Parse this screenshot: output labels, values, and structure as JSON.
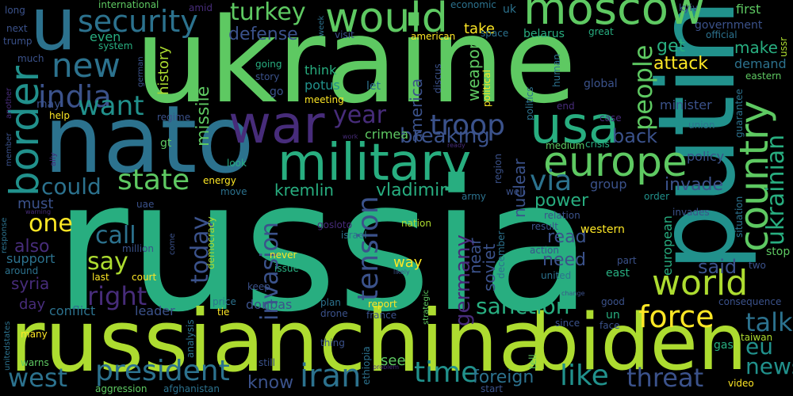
{
  "palette": {
    "background": "#000000",
    "dark-purple": "#440154",
    "indigo": "#472c7a",
    "slate-blue": "#3b528b",
    "steel-blue": "#2c728e",
    "teal": "#21918c",
    "sea-green": "#28ae80",
    "green": "#5ec962",
    "lime": "#addc30",
    "yellow": "#fde725"
  },
  "words": [
    {
      "text": "russia",
      "color": "sea-green"
    },
    {
      "text": "ukraine",
      "color": "green"
    },
    {
      "text": "russianchina",
      "color": "lime"
    },
    {
      "text": "putin",
      "color": "teal"
    },
    {
      "text": "nato",
      "color": "steel-blue"
    },
    {
      "text": "biden",
      "color": "lime"
    },
    {
      "text": "u",
      "color": "steel-blue"
    },
    {
      "text": "war",
      "color": "indigo"
    },
    {
      "text": "moscow",
      "color": "green"
    },
    {
      "text": "military",
      "color": "sea-green"
    },
    {
      "text": "would",
      "color": "green"
    },
    {
      "text": "usa",
      "color": "sea-green"
    },
    {
      "text": "europe",
      "color": "green"
    },
    {
      "text": "country",
      "color": "green"
    },
    {
      "text": "border",
      "color": "teal"
    },
    {
      "text": "world",
      "color": "lime"
    },
    {
      "text": "security",
      "color": "steel-blue"
    },
    {
      "text": "new",
      "color": "steel-blue"
    },
    {
      "text": "president",
      "color": "steel-blue"
    },
    {
      "text": "force",
      "color": "yellow"
    },
    {
      "text": "time",
      "color": "teal"
    },
    {
      "text": "ukrainian",
      "color": "sea-green"
    },
    {
      "text": "india",
      "color": "slate-blue"
    },
    {
      "text": "invasion",
      "color": "slate-blue"
    },
    {
      "text": "tension",
      "color": "slate-blue"
    },
    {
      "text": "troop",
      "color": "slate-blue"
    },
    {
      "text": "state",
      "color": "green"
    },
    {
      "text": "want",
      "color": "teal"
    },
    {
      "text": "sanction",
      "color": "sea-green"
    },
    {
      "text": "germany",
      "color": "indigo"
    },
    {
      "text": "iran",
      "color": "steel-blue"
    },
    {
      "text": "threat",
      "color": "slate-blue"
    },
    {
      "text": "like",
      "color": "teal"
    },
    {
      "text": "foreign",
      "color": "steel-blue"
    },
    {
      "text": "people",
      "color": "green"
    },
    {
      "text": "west",
      "color": "steel-blue"
    },
    {
      "text": "talk",
      "color": "steel-blue"
    },
    {
      "text": "news",
      "color": "teal"
    },
    {
      "text": "eu",
      "color": "teal"
    },
    {
      "text": "right",
      "color": "indigo"
    },
    {
      "text": "turkey",
      "color": "green"
    },
    {
      "text": "via",
      "color": "steel-blue"
    },
    {
      "text": "could",
      "color": "steel-blue"
    },
    {
      "text": "year",
      "color": "indigo"
    },
    {
      "text": "breaking",
      "color": "slate-blue"
    },
    {
      "text": "call",
      "color": "steel-blue"
    },
    {
      "text": "say",
      "color": "lime"
    },
    {
      "text": "one",
      "color": "yellow"
    },
    {
      "text": "today",
      "color": "slate-blue"
    },
    {
      "text": "back",
      "color": "slate-blue"
    },
    {
      "text": "america",
      "color": "slate-blue"
    },
    {
      "text": "kremlin",
      "color": "sea-green"
    },
    {
      "text": "vladimir",
      "color": "sea-green"
    },
    {
      "text": "invade",
      "color": "slate-blue"
    },
    {
      "text": "said",
      "color": "slate-blue"
    },
    {
      "text": "power",
      "color": "sea-green"
    },
    {
      "text": "read",
      "color": "slate-blue"
    },
    {
      "text": "need",
      "color": "slate-blue"
    },
    {
      "text": "know",
      "color": "slate-blue"
    },
    {
      "text": "attack",
      "color": "yellow"
    },
    {
      "text": "defense",
      "color": "slate-blue"
    },
    {
      "text": "missile",
      "color": "green"
    },
    {
      "text": "nuclear",
      "color": "slate-blue"
    },
    {
      "text": "soviet",
      "color": "slate-blue"
    },
    {
      "text": "near",
      "color": "slate-blue"
    },
    {
      "text": "weapon",
      "color": "green"
    },
    {
      "text": "get",
      "color": "sea-green"
    },
    {
      "text": "make",
      "color": "sea-green"
    },
    {
      "text": "first",
      "color": "green"
    },
    {
      "text": "history",
      "color": "lime"
    },
    {
      "text": "even",
      "color": "sea-green"
    },
    {
      "text": "group",
      "color": "slate-blue"
    },
    {
      "text": "take",
      "color": "yellow"
    },
    {
      "text": "must",
      "color": "slate-blue"
    },
    {
      "text": "also",
      "color": "indigo"
    },
    {
      "text": "syria",
      "color": "indigo"
    },
    {
      "text": "day",
      "color": "indigo"
    },
    {
      "text": "support",
      "color": "steel-blue"
    },
    {
      "text": "conflict",
      "color": "steel-blue"
    },
    {
      "text": "leader",
      "color": "slate-blue"
    },
    {
      "text": "donbas",
      "color": "slate-blue"
    },
    {
      "text": "see",
      "color": "green"
    },
    {
      "text": "way",
      "color": "yellow"
    },
    {
      "text": "western",
      "color": "yellow"
    },
    {
      "text": "european",
      "color": "sea-green"
    },
    {
      "text": "crimea",
      "color": "green"
    },
    {
      "text": "belarus",
      "color": "sea-green"
    },
    {
      "text": "think",
      "color": "sea-green"
    },
    {
      "text": "potus",
      "color": "teal"
    },
    {
      "text": "minister",
      "color": "slate-blue"
    },
    {
      "text": "demand",
      "color": "steel-blue"
    },
    {
      "text": "policy",
      "color": "slate-blue"
    },
    {
      "text": "government",
      "color": "slate-blue"
    },
    {
      "text": "stop",
      "color": "green"
    },
    {
      "text": "international",
      "color": "green"
    },
    {
      "text": "trump",
      "color": "slate-blue"
    },
    {
      "text": "next",
      "color": "slate-blue"
    },
    {
      "text": "long",
      "color": "slate-blue"
    },
    {
      "text": "much",
      "color": "slate-blue"
    },
    {
      "text": "system",
      "color": "sea-green"
    },
    {
      "text": "going",
      "color": "sea-green"
    },
    {
      "text": "story",
      "color": "slate-blue"
    },
    {
      "text": "go",
      "color": "slate-blue"
    },
    {
      "text": "let",
      "color": "steel-blue"
    },
    {
      "text": "meeting",
      "color": "yellow"
    },
    {
      "text": "discus",
      "color": "slate-blue"
    },
    {
      "text": "visit",
      "color": "slate-blue"
    },
    {
      "text": "american",
      "color": "yellow"
    },
    {
      "text": "economic",
      "color": "steel-blue"
    },
    {
      "text": "uk",
      "color": "steel-blue"
    },
    {
      "text": "space",
      "color": "steel-blue"
    },
    {
      "text": "great",
      "color": "sea-green"
    },
    {
      "text": "kyiv",
      "color": "slate-blue"
    },
    {
      "text": "official",
      "color": "steel-blue"
    },
    {
      "text": "ussr",
      "color": "lime"
    },
    {
      "text": "eastern",
      "color": "green"
    },
    {
      "text": "human",
      "color": "steel-blue"
    },
    {
      "text": "global",
      "color": "slate-blue"
    },
    {
      "text": "political",
      "color": "yellow"
    },
    {
      "text": "politics",
      "color": "steel-blue"
    },
    {
      "text": "end",
      "color": "indigo"
    },
    {
      "text": "case",
      "color": "indigo"
    },
    {
      "text": "union",
      "color": "steel-blue"
    },
    {
      "text": "guarantee",
      "color": "steel-blue"
    },
    {
      "text": "crisis",
      "color": "sea-green"
    },
    {
      "text": "medium",
      "color": "green"
    },
    {
      "text": "regime",
      "color": "slate-blue"
    },
    {
      "text": "help",
      "color": "yellow"
    },
    {
      "text": "may",
      "color": "slate-blue"
    },
    {
      "text": "member",
      "color": "slate-blue"
    },
    {
      "text": "gt",
      "color": "green"
    },
    {
      "text": "work",
      "color": "indigo"
    },
    {
      "text": "ready",
      "color": "indigo"
    },
    {
      "text": "look",
      "color": "sea-green"
    },
    {
      "text": "energy",
      "color": "yellow"
    },
    {
      "text": "move",
      "color": "steel-blue"
    },
    {
      "text": "uae",
      "color": "slate-blue"
    },
    {
      "text": "army",
      "color": "steel-blue"
    },
    {
      "text": "well",
      "color": "slate-blue"
    },
    {
      "text": "order",
      "color": "teal"
    },
    {
      "text": "invades",
      "color": "slate-blue"
    },
    {
      "text": "situation",
      "color": "steel-blue"
    },
    {
      "text": "relation",
      "color": "slate-blue"
    },
    {
      "text": "result",
      "color": "slate-blue"
    },
    {
      "text": "action",
      "color": "slate-blue"
    },
    {
      "text": "united",
      "color": "steel-blue"
    },
    {
      "text": "part",
      "color": "slate-blue"
    },
    {
      "text": "east",
      "color": "sea-green"
    },
    {
      "text": "two",
      "color": "slate-blue"
    },
    {
      "text": "consequence",
      "color": "slate-blue"
    },
    {
      "text": "gosloto",
      "color": "indigo"
    },
    {
      "text": "israel",
      "color": "steel-blue"
    },
    {
      "text": "nation",
      "color": "lime"
    },
    {
      "text": "democracy",
      "color": "lime"
    },
    {
      "text": "million",
      "color": "slate-blue"
    },
    {
      "text": "come",
      "color": "slate-blue"
    },
    {
      "text": "never",
      "color": "yellow"
    },
    {
      "text": "issue",
      "color": "sea-green"
    },
    {
      "text": "likely",
      "color": "slate-blue"
    },
    {
      "text": "december",
      "color": "steel-blue"
    },
    {
      "text": "last",
      "color": "yellow"
    },
    {
      "text": "court",
      "color": "yellow"
    },
    {
      "text": "keep",
      "color": "slate-blue"
    },
    {
      "text": "change",
      "color": "slate-blue"
    },
    {
      "text": "around",
      "color": "steel-blue"
    },
    {
      "text": "response",
      "color": "steel-blue"
    },
    {
      "text": "warning",
      "color": "indigo"
    },
    {
      "text": "price",
      "color": "steel-blue"
    },
    {
      "text": "tie",
      "color": "yellow"
    },
    {
      "text": "plan",
      "color": "steel-blue"
    },
    {
      "text": "drone",
      "color": "slate-blue"
    },
    {
      "text": "report",
      "color": "yellow"
    },
    {
      "text": "france",
      "color": "slate-blue"
    },
    {
      "text": "strategic",
      "color": "green"
    },
    {
      "text": "good",
      "color": "slate-blue"
    },
    {
      "text": "un",
      "color": "sea-green"
    },
    {
      "text": "since",
      "color": "slate-blue"
    },
    {
      "text": "face",
      "color": "slate-blue"
    },
    {
      "text": "gas",
      "color": "sea-green"
    },
    {
      "text": "taiwan",
      "color": "lime"
    },
    {
      "text": "unitedstates",
      "color": "steel-blue"
    },
    {
      "text": "many",
      "color": "yellow"
    },
    {
      "text": "warns",
      "color": "green"
    },
    {
      "text": "analysis",
      "color": "steel-blue"
    },
    {
      "text": "thing",
      "color": "slate-blue"
    },
    {
      "text": "ethiopia",
      "color": "steel-blue"
    },
    {
      "text": "tell",
      "color": "green"
    },
    {
      "text": "still",
      "color": "slate-blue"
    },
    {
      "text": "problem",
      "color": "indigo"
    },
    {
      "text": "start",
      "color": "slate-blue"
    },
    {
      "text": "video",
      "color": "yellow"
    },
    {
      "text": "aggression",
      "color": "green"
    },
    {
      "text": "afghanistan",
      "color": "steel-blue"
    },
    {
      "text": "amid",
      "color": "indigo"
    },
    {
      "text": "week",
      "color": "steel-blue"
    },
    {
      "text": "another",
      "color": "indigo"
    },
    {
      "text": "german",
      "color": "slate-blue"
    },
    {
      "text": "region",
      "color": "slate-blue"
    },
    {
      "text": "ally",
      "color": "indigo"
    }
  ]
}
